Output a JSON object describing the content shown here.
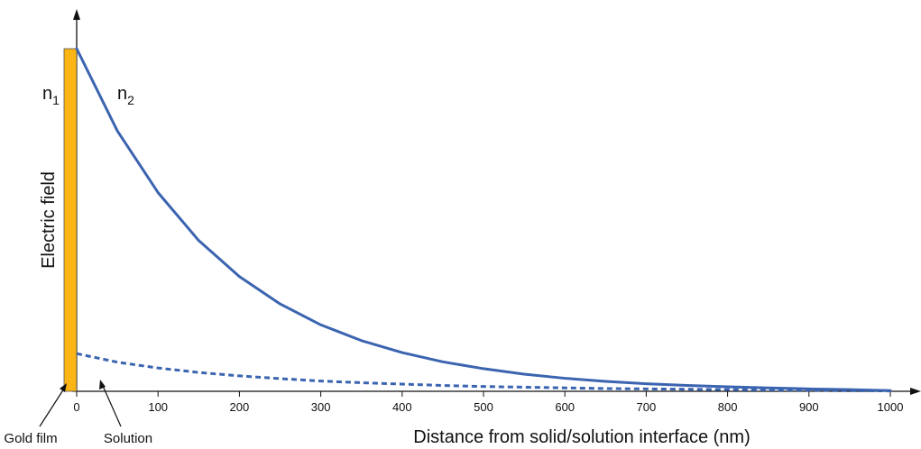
{
  "chart_data": {
    "type": "line",
    "title": "",
    "xlabel": "Distance from solid/solution interface (nm)",
    "ylabel": "Electric field",
    "x_ticks": [
      0,
      100,
      200,
      300,
      400,
      500,
      600,
      700,
      800,
      900,
      1000
    ],
    "xlim": [
      0,
      1000
    ],
    "ylim": [
      0,
      1
    ],
    "grid": false,
    "legend": "none",
    "series": [
      {
        "style": "solid",
        "color": "#3b64b0",
        "x": [
          0,
          50,
          100,
          150,
          200,
          250,
          300,
          350,
          400,
          450,
          500,
          550,
          600,
          650,
          700,
          750,
          800,
          850,
          900,
          950,
          1000
        ],
        "y": [
          1.0,
          0.76,
          0.58,
          0.44,
          0.335,
          0.255,
          0.194,
          0.148,
          0.113,
          0.086,
          0.066,
          0.05,
          0.038,
          0.029,
          0.022,
          0.017,
          0.013,
          0.01,
          0.007,
          0.005,
          0.002
        ]
      },
      {
        "style": "dashed",
        "color": "#3b64b0",
        "x": [
          0,
          50,
          100,
          150,
          200,
          250,
          300,
          350,
          400,
          450,
          500,
          550,
          600,
          650,
          700,
          750,
          800,
          850,
          900,
          950,
          1000
        ],
        "y": [
          0.11,
          0.085,
          0.068,
          0.055,
          0.045,
          0.037,
          0.03,
          0.025,
          0.021,
          0.017,
          0.014,
          0.012,
          0.01,
          0.008,
          0.007,
          0.006,
          0.005,
          0.004,
          0.003,
          0.002,
          0.001
        ]
      }
    ],
    "annotations": {
      "n1": {
        "base": "n",
        "sub": "1"
      },
      "n2": {
        "base": "n",
        "sub": "2"
      },
      "gold_film": "Gold film",
      "solution": "Solution"
    },
    "colors": {
      "gold_film_fill": "#fbb515",
      "gold_film_edge": "#555555",
      "axis": "#111111"
    }
  }
}
